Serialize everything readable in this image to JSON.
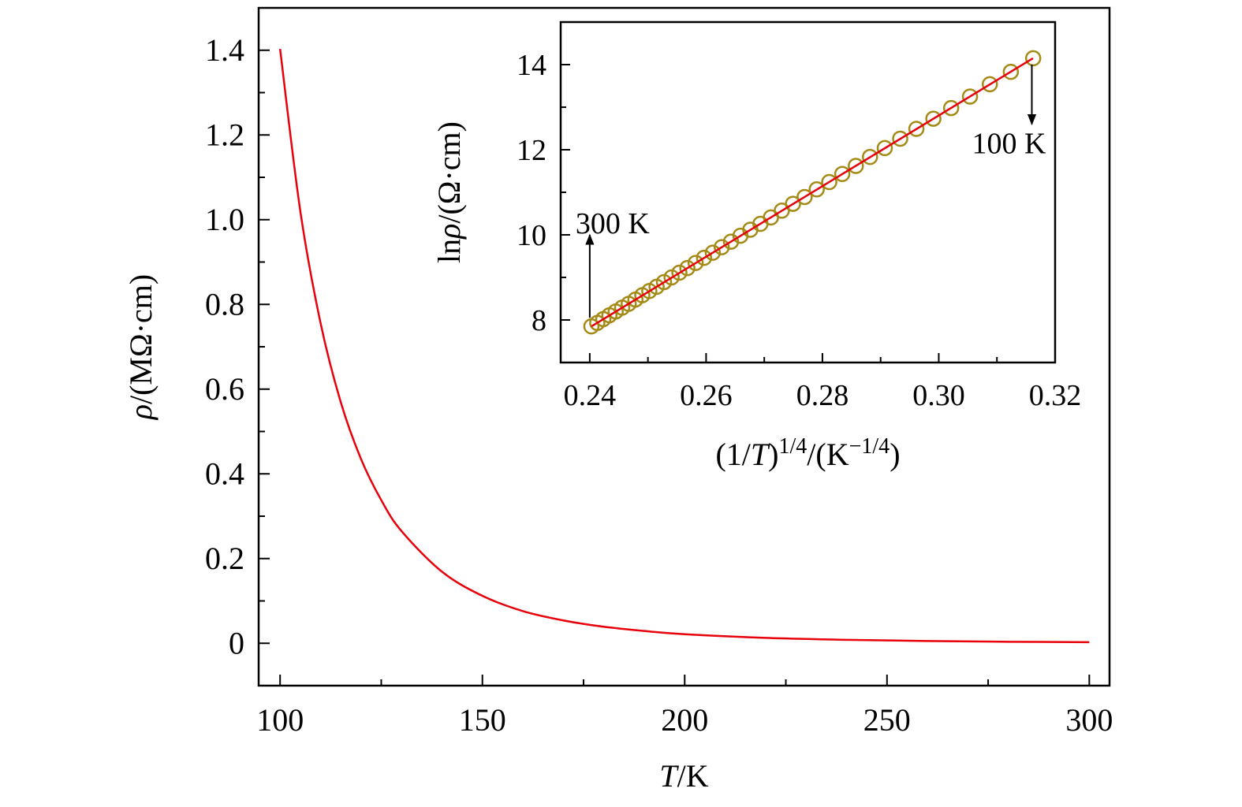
{
  "chart_data": [
    {
      "type": "line",
      "title": "",
      "xlabel_parts": [
        {
          "t": "T",
          "i": true
        },
        {
          "t": "/K"
        }
      ],
      "ylabel_parts": [
        {
          "t": "ρ",
          "i": true
        },
        {
          "t": "/(MΩ·cm)"
        }
      ],
      "xlim": [
        94.7,
        305
      ],
      "ylim": [
        -0.1,
        1.5
      ],
      "xticks": [
        100,
        150,
        200,
        250,
        300
      ],
      "xtick_labels": [
        "100",
        "150",
        "200",
        "250",
        "300"
      ],
      "xminor_step": 25,
      "yticks": [
        0,
        0.2,
        0.4,
        0.6,
        0.8,
        1.0,
        1.2,
        1.4
      ],
      "ytick_labels": [
        "0",
        "0.2",
        "0.4",
        "0.6",
        "0.8",
        "1.0",
        "1.2",
        "1.4"
      ],
      "yminor_step": 0.1,
      "grid": false,
      "series": [
        {
          "name": "rho",
          "color": "#e8000b",
          "x": [
            100,
            105,
            110,
            115,
            120,
            125,
            130,
            140,
            150,
            160,
            170,
            180,
            190,
            200,
            220,
            240,
            260,
            280,
            300
          ],
          "y": [
            1.403,
            1.02,
            0.756,
            0.569,
            0.435,
            0.338,
            0.265,
            0.169,
            0.112,
            0.076,
            0.054,
            0.039,
            0.029,
            0.0215,
            0.0128,
            0.0081,
            0.0053,
            0.0036,
            0.0026
          ]
        }
      ]
    },
    {
      "type": "scatter",
      "title": "",
      "xlabel_parts": [
        {
          "t": "(1/"
        },
        {
          "t": "T",
          "i": true
        },
        {
          "t": ")"
        },
        {
          "t": "1/4",
          "sup": true
        },
        {
          "t": "/(K"
        },
        {
          "t": "−1/4",
          "sup": true
        },
        {
          "t": ")"
        }
      ],
      "ylabel_parts": [
        {
          "t": "ln"
        },
        {
          "t": "ρ",
          "i": true
        },
        {
          "t": "/(Ω·cm)"
        }
      ],
      "xlim": [
        0.235,
        0.32
      ],
      "ylim": [
        7,
        15
      ],
      "xticks": [
        0.24,
        0.26,
        0.28,
        0.3,
        0.32
      ],
      "xtick_labels": [
        "0.24",
        "0.26",
        "0.28",
        "0.30",
        "0.32"
      ],
      "xminor_step": 0.01,
      "yticks": [
        8,
        10,
        12,
        14
      ],
      "ytick_labels": [
        "8",
        "10",
        "12",
        "14"
      ],
      "yminor_step": 1,
      "grid": false,
      "series": [
        {
          "name": "data",
          "marker": "open-circle",
          "color": "#a48a16",
          "x": [
            0.31623,
            0.31239,
            0.30878,
            0.30537,
            0.30213,
            0.29907,
            0.29615,
            0.29337,
            0.29072,
            0.28818,
            0.28574,
            0.28341,
            0.28117,
            0.27902,
            0.27694,
            0.27494,
            0.27302,
            0.27115,
            0.26934,
            0.2676,
            0.26591,
            0.26428,
            0.26269,
            0.26115,
            0.25965,
            0.2582,
            0.25678,
            0.25541,
            0.25407,
            0.25276,
            0.25149,
            0.25024,
            0.24903,
            0.24785,
            0.24669,
            0.24557,
            0.24446,
            0.24338,
            0.24233,
            0.24129,
            0.24028
          ],
          "y": [
            14.15,
            13.83,
            13.54,
            13.25,
            12.98,
            12.73,
            12.49,
            12.26,
            12.04,
            11.83,
            11.62,
            11.43,
            11.24,
            11.07,
            10.89,
            10.73,
            10.57,
            10.41,
            10.26,
            10.12,
            9.98,
            9.84,
            9.71,
            9.58,
            9.46,
            9.34,
            9.22,
            9.11,
            9.0,
            8.89,
            8.78,
            8.68,
            8.58,
            8.48,
            8.38,
            8.29,
            8.2,
            8.11,
            8.02,
            7.93,
            7.85
          ]
        },
        {
          "name": "fit",
          "color": "#e8000b",
          "x": [
            0.2403,
            0.3162
          ],
          "y": [
            7.85,
            14.15
          ]
        }
      ],
      "annotations": [
        {
          "text": "300 K",
          "arrow_x": 0.24,
          "arrow_from": 8.05,
          "arrow_to": 10.0,
          "direction": "up"
        },
        {
          "text": "100 K",
          "arrow_x": 0.316,
          "arrow_from": 14.0,
          "arrow_to": 12.6,
          "direction": "down"
        }
      ]
    }
  ]
}
